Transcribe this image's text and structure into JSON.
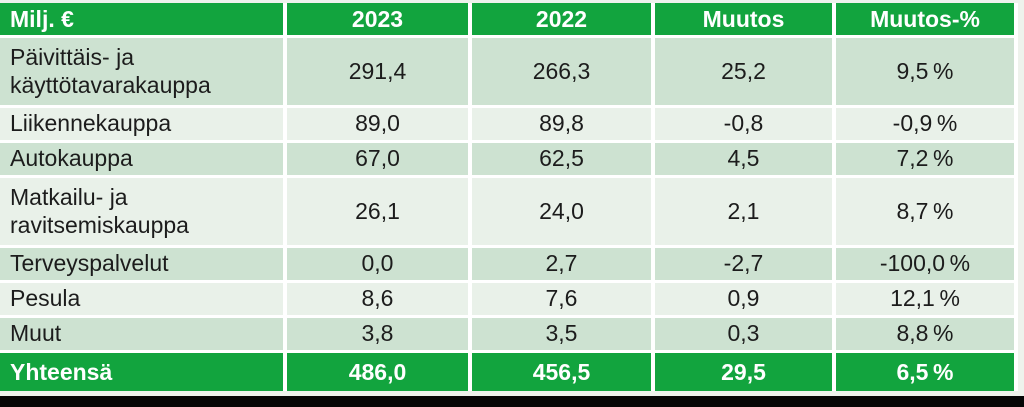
{
  "table": {
    "unit_label": "Milj. €",
    "columns": [
      "2023",
      "2022",
      "Muutos",
      "Muutos-%"
    ],
    "rows": [
      {
        "label": "Päivittäis- ja käyttötavarakauppa",
        "values": [
          "291,4",
          "266,3",
          "25,2",
          "9,5 %"
        ]
      },
      {
        "label": "Liikennekauppa",
        "values": [
          "89,0",
          "89,8",
          "-0,8",
          "-0,9 %"
        ]
      },
      {
        "label": "Autokauppa",
        "values": [
          "67,0",
          "62,5",
          "4,5",
          "7,2 %"
        ]
      },
      {
        "label": "Matkailu- ja ravitsemiskauppa",
        "values": [
          "26,1",
          "24,0",
          "2,1",
          "8,7 %"
        ]
      },
      {
        "label": "Terveyspalvelut",
        "values": [
          "0,0",
          "2,7",
          "-2,7",
          "-100,0 %"
        ]
      },
      {
        "label": "Pesula",
        "values": [
          "8,6",
          "7,6",
          "0,9",
          "12,1 %"
        ]
      },
      {
        "label": "Muut",
        "values": [
          "3,8",
          "3,5",
          "0,3",
          "8,8 %"
        ]
      }
    ],
    "total": {
      "label": "Yhteensä",
      "values": [
        "486,0",
        "456,5",
        "29,5",
        "6,5 %"
      ]
    }
  },
  "chart_data": {
    "type": "table",
    "title": "",
    "unit": "Milj. €",
    "columns": [
      "2023",
      "2022",
      "Muutos",
      "Muutos-%"
    ],
    "rows": [
      {
        "label": "Päivittäis- ja käyttötavarakauppa",
        "y2023": 291.4,
        "y2022": 266.3,
        "muutos": 25.2,
        "muutos_pct": 9.5
      },
      {
        "label": "Liikennekauppa",
        "y2023": 89.0,
        "y2022": 89.8,
        "muutos": -0.8,
        "muutos_pct": -0.9
      },
      {
        "label": "Autokauppa",
        "y2023": 67.0,
        "y2022": 62.5,
        "muutos": 4.5,
        "muutos_pct": 7.2
      },
      {
        "label": "Matkailu- ja ravitsemiskauppa",
        "y2023": 26.1,
        "y2022": 24.0,
        "muutos": 2.1,
        "muutos_pct": 8.7
      },
      {
        "label": "Terveyspalvelut",
        "y2023": 0.0,
        "y2022": 2.7,
        "muutos": -2.7,
        "muutos_pct": -100.0
      },
      {
        "label": "Pesula",
        "y2023": 8.6,
        "y2022": 7.6,
        "muutos": 0.9,
        "muutos_pct": 12.1
      },
      {
        "label": "Muut",
        "y2023": 3.8,
        "y2022": 3.5,
        "muutos": 0.3,
        "muutos_pct": 8.8
      }
    ],
    "total": {
      "label": "Yhteensä",
      "y2023": 486.0,
      "y2022": 456.5,
      "muutos": 29.5,
      "muutos_pct": 6.5
    }
  },
  "colors": {
    "brand_green": "#12A43E",
    "row_shade_dark": "#CDE2D1",
    "row_shade_light": "#E9F1E9",
    "header_text": "#FFFFFF",
    "body_text": "#1C1C1C",
    "margin_strip": "#EEF2EC",
    "letterbox_black": "#050505"
  }
}
